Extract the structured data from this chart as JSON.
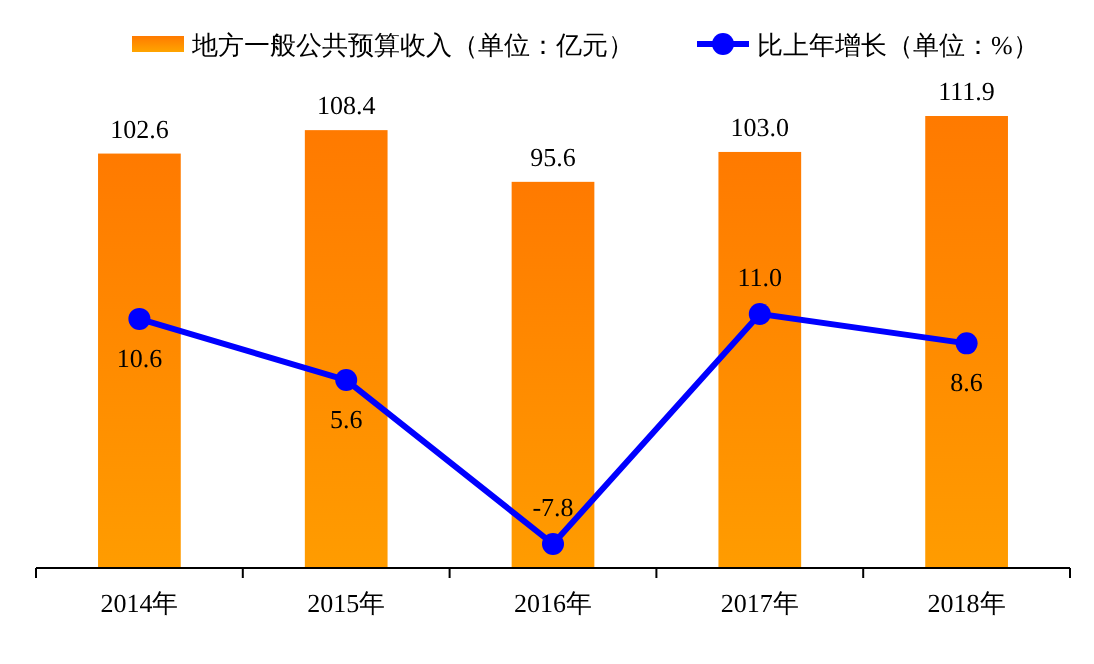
{
  "chart_data": {
    "type": "bar",
    "categories": [
      "2014年",
      "2015年",
      "2016年",
      "2017年",
      "2018年"
    ],
    "series": [
      {
        "name": "地方一般公共预算收入（单位：亿元）",
        "color": "#ff7a00",
        "values": [
          102.6,
          108.4,
          95.6,
          103.0,
          111.9
        ],
        "value_labels": [
          "102.6",
          "108.4",
          "95.6",
          "103.0",
          "111.9"
        ]
      },
      {
        "name": "比上年增长（单位：%）",
        "type": "line",
        "axis": "y2",
        "color": "#0000ff",
        "values": [
          10.6,
          5.6,
          -7.8,
          11.0,
          8.6
        ],
        "value_labels": [
          "10.6",
          "5.6",
          "-7.8",
          "11.0",
          "8.6"
        ]
      }
    ],
    "tick_labels": "x",
    "data_labels": true,
    "legend": "top",
    "marker": "circle"
  }
}
